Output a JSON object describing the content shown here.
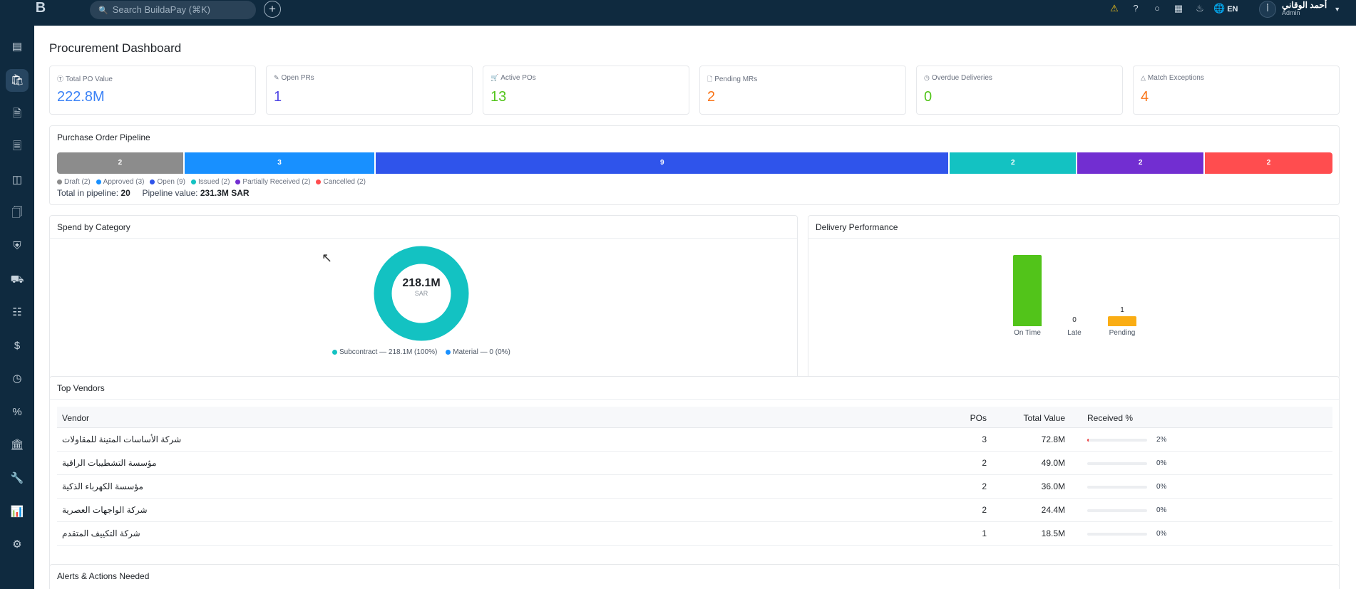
{
  "topbar": {
    "logo_text": "B",
    "search_placeholder": "Search BuildaPay (⌘K)",
    "plus_label": "+",
    "icons": [
      "bell-yellow-icon",
      "help-icon",
      "chat-icon",
      "calculator-icon",
      "bell-icon"
    ],
    "lang_label": "EN",
    "user_name": "أحمد الوقاني",
    "user_role": "Admin",
    "avatar_initials": "أ"
  },
  "sidebar": {
    "items": [
      "dashboard-icon",
      "shopping-bag-icon",
      "document-icon",
      "file-check-icon",
      "layout-icon",
      "file-search-icon",
      "shield-icon",
      "car-icon",
      "receipt-icon",
      "dollar-icon",
      "clock-icon",
      "percent-icon",
      "bank-icon",
      "wrench-icon",
      "chart-icon",
      "settings-icon"
    ],
    "active_index": 1
  },
  "page": {
    "title": "Procurement Dashboard"
  },
  "kpis": [
    {
      "label": "Total PO Value",
      "value": "222.8M",
      "icon": "dollar-circle-icon",
      "color": "#3b82f6"
    },
    {
      "label": "Open PRs",
      "value": "1",
      "icon": "edit-icon",
      "color": "#4f46e5"
    },
    {
      "label": "Active POs",
      "value": "13",
      "icon": "cart-icon",
      "color": "#52c41a"
    },
    {
      "label": "Pending MRs",
      "value": "2",
      "icon": "file-icon",
      "color": "#f97316"
    },
    {
      "label": "Overdue Deliveries",
      "value": "0",
      "icon": "clock-icon",
      "color": "#52c41a"
    },
    {
      "label": "Match Exceptions",
      "value": "4",
      "icon": "warning-icon",
      "color": "#f97316"
    }
  ],
  "pipeline": {
    "title": "Purchase Order Pipeline",
    "segments": [
      {
        "label": "Draft (2)",
        "count": 2,
        "color": "#8c8c8c"
      },
      {
        "label": "Approved (3)",
        "count": 3,
        "color": "#1890ff"
      },
      {
        "label": "Open (9)",
        "count": 9,
        "color": "#2f54eb"
      },
      {
        "label": "Issued (2)",
        "count": 2,
        "color": "#13c2c2"
      },
      {
        "label": "Partially Received (2)",
        "count": 2,
        "color": "#722ed1"
      },
      {
        "label": "Cancelled (2)",
        "count": 2,
        "color": "#ff4d4f"
      }
    ],
    "total_label": "Total in pipeline:",
    "total_value": "20",
    "value_label": "Pipeline value:",
    "value_value": "231.3M SAR"
  },
  "spend": {
    "title": "Spend by Category",
    "center_value": "218.1M",
    "center_unit": "SAR",
    "legend": [
      {
        "label": "Subcontract — 218.1M (100%)",
        "color": "#13c2c2"
      },
      {
        "label": "Material — 0 (0%)",
        "color": "#1890ff"
      }
    ]
  },
  "delivery": {
    "title": "Delivery Performance"
  },
  "chart_data": [
    {
      "type": "pie",
      "title": "Spend by Category",
      "categories": [
        "Subcontract",
        "Material"
      ],
      "values": [
        218.1,
        0
      ],
      "unit": "M SAR"
    },
    {
      "type": "bar",
      "title": "Delivery Performance",
      "categories": [
        "On Time",
        "Late",
        "Pending"
      ],
      "values": [
        12,
        0,
        1
      ],
      "shown_labels": [
        "",
        "0",
        "1"
      ],
      "colors": [
        "#52c41a",
        "#ff4d4f",
        "#faad14"
      ]
    }
  ],
  "vendors": {
    "title": "Top Vendors",
    "columns": [
      "Vendor",
      "POs",
      "Total Value",
      "Received %"
    ],
    "rows": [
      {
        "vendor": "شركة الأساسات المتينة للمقاولات",
        "pos": "3",
        "total": "72.8M",
        "received": "2%",
        "received_frac": 0.02
      },
      {
        "vendor": "مؤسسة التشطيبات الراقية",
        "pos": "2",
        "total": "49.0M",
        "received": "0%",
        "received_frac": 0
      },
      {
        "vendor": "مؤسسة الكهرباء الذكية",
        "pos": "2",
        "total": "36.0M",
        "received": "0%",
        "received_frac": 0
      },
      {
        "vendor": "شركة الواجهات العصرية",
        "pos": "2",
        "total": "24.4M",
        "received": "0%",
        "received_frac": 0
      },
      {
        "vendor": "شركة التكييف المتقدم",
        "pos": "1",
        "total": "18.5M",
        "received": "0%",
        "received_frac": 0
      }
    ]
  },
  "alerts": {
    "title": "Alerts & Actions Needed"
  }
}
